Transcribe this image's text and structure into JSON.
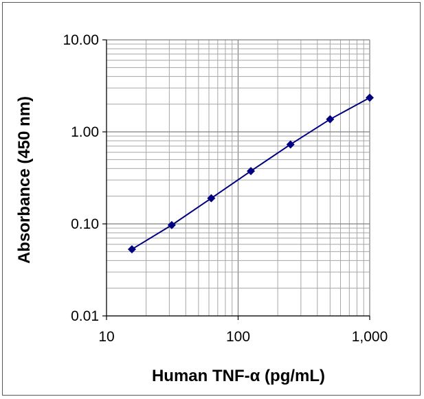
{
  "chart_data": {
    "type": "line",
    "xlabel": "Human TNF-α (pg/mL)",
    "ylabel": "Absorbance (450 nm)",
    "x_scale": "log",
    "y_scale": "log",
    "xlim": [
      10,
      1000
    ],
    "ylim": [
      0.01,
      10
    ],
    "x_ticks": [
      10,
      100,
      1000
    ],
    "x_tick_labels": [
      "10",
      "100",
      "1,000"
    ],
    "y_ticks": [
      0.01,
      0.1,
      1,
      10
    ],
    "y_tick_labels": [
      "0.01",
      "0.10",
      "1.00",
      "10.00"
    ],
    "grid": true,
    "legend": "none",
    "series": [
      {
        "color": "#000080",
        "marker": "diamond",
        "x": [
          15.6,
          31.3,
          62.5,
          125,
          250,
          500,
          1000
        ],
        "y": [
          0.053,
          0.097,
          0.19,
          0.375,
          0.73,
          1.37,
          2.35
        ]
      }
    ]
  }
}
